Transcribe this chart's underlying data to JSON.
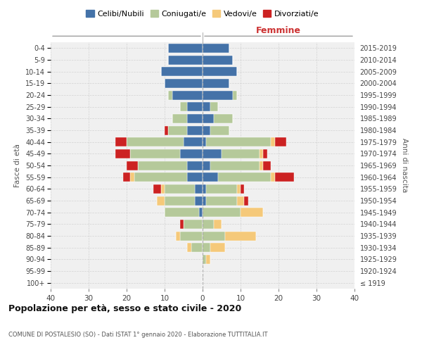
{
  "age_groups": [
    "100+",
    "95-99",
    "90-94",
    "85-89",
    "80-84",
    "75-79",
    "70-74",
    "65-69",
    "60-64",
    "55-59",
    "50-54",
    "45-49",
    "40-44",
    "35-39",
    "30-34",
    "25-29",
    "20-24",
    "15-19",
    "10-14",
    "5-9",
    "0-4"
  ],
  "birth_years": [
    "≤ 1919",
    "1920-1924",
    "1925-1929",
    "1930-1934",
    "1935-1939",
    "1940-1944",
    "1945-1949",
    "1950-1954",
    "1955-1959",
    "1960-1964",
    "1965-1969",
    "1970-1974",
    "1975-1979",
    "1980-1984",
    "1985-1989",
    "1990-1994",
    "1995-1999",
    "2000-2004",
    "2005-2009",
    "2010-2014",
    "2015-2019"
  ],
  "male": {
    "celibi": [
      0,
      0,
      0,
      0,
      0,
      0,
      1,
      2,
      2,
      4,
      4,
      6,
      5,
      4,
      4,
      4,
      8,
      10,
      11,
      9,
      9
    ],
    "coniugati": [
      0,
      0,
      0,
      3,
      6,
      5,
      9,
      8,
      8,
      14,
      13,
      13,
      15,
      5,
      4,
      2,
      1,
      0,
      0,
      0,
      0
    ],
    "vedovi": [
      0,
      0,
      0,
      1,
      1,
      0,
      0,
      2,
      1,
      1,
      0,
      0,
      0,
      0,
      0,
      0,
      0,
      0,
      0,
      0,
      0
    ],
    "divorziati": [
      0,
      0,
      0,
      0,
      0,
      1,
      0,
      0,
      2,
      2,
      3,
      4,
      3,
      1,
      0,
      0,
      0,
      0,
      0,
      0,
      0
    ]
  },
  "female": {
    "nubili": [
      0,
      0,
      0,
      0,
      0,
      0,
      0,
      1,
      1,
      4,
      2,
      5,
      1,
      2,
      3,
      2,
      8,
      7,
      9,
      8,
      7
    ],
    "coniugate": [
      0,
      0,
      1,
      2,
      6,
      3,
      10,
      8,
      8,
      14,
      13,
      10,
      17,
      5,
      5,
      2,
      1,
      0,
      0,
      0,
      0
    ],
    "vedove": [
      0,
      0,
      1,
      4,
      8,
      2,
      6,
      2,
      1,
      1,
      1,
      1,
      1,
      0,
      0,
      0,
      0,
      0,
      0,
      0,
      0
    ],
    "divorziate": [
      0,
      0,
      0,
      0,
      0,
      0,
      0,
      1,
      1,
      5,
      2,
      1,
      3,
      0,
      0,
      0,
      0,
      0,
      0,
      0,
      0
    ]
  },
  "colors": {
    "celibi": "#4472a8",
    "coniugati": "#b5c99a",
    "vedovi": "#f5c97a",
    "divorziati": "#cc2222"
  },
  "xlim": 40,
  "title": "Popolazione per età, sesso e stato civile - 2020",
  "subtitle": "COMUNE DI POSTALESIO (SO) - Dati ISTAT 1° gennaio 2020 - Elaborazione TUTTITALIA.IT",
  "ylabel_left": "Fasce di età",
  "ylabel_right": "Anni di nascita",
  "xlabel_right": "Femmine",
  "legend_labels": [
    "Celibi/Nubili",
    "Coniugati/e",
    "Vedovi/e",
    "Divorziati/e"
  ],
  "bg_color": "#ffffff",
  "grid_color": "#cccccc",
  "ax_bg_color": "#f0f0f0"
}
